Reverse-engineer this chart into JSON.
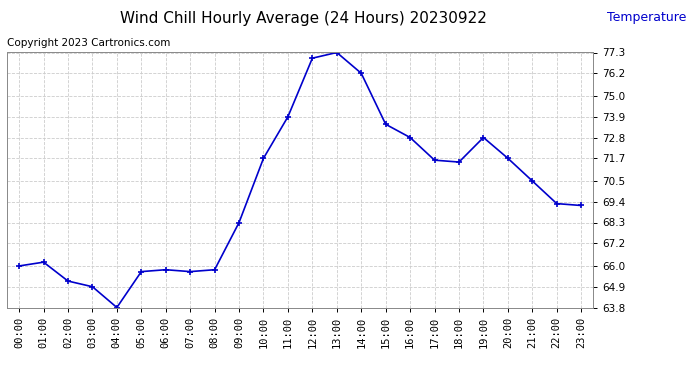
{
  "title": "Wind Chill Hourly Average (24 Hours) 20230922",
  "ylabel": "Temperature (°F)",
  "copyright": "Copyright 2023 Cartronics.com",
  "hours": [
    "00:00",
    "01:00",
    "02:00",
    "03:00",
    "04:00",
    "05:00",
    "06:00",
    "07:00",
    "08:00",
    "09:00",
    "10:00",
    "11:00",
    "12:00",
    "13:00",
    "14:00",
    "15:00",
    "16:00",
    "17:00",
    "18:00",
    "19:00",
    "20:00",
    "21:00",
    "22:00",
    "23:00"
  ],
  "values": [
    66.0,
    66.2,
    65.2,
    64.9,
    63.8,
    65.7,
    65.8,
    65.7,
    65.8,
    68.3,
    71.7,
    73.9,
    77.0,
    77.3,
    76.2,
    73.5,
    72.8,
    71.6,
    71.5,
    72.8,
    71.7,
    70.5,
    69.3,
    69.2
  ],
  "line_color": "#0000cc",
  "marker": "+",
  "ylim_min": 63.8,
  "ylim_max": 77.3,
  "yticks": [
    63.8,
    64.9,
    66.0,
    67.2,
    68.3,
    69.4,
    70.5,
    71.7,
    72.8,
    73.9,
    75.0,
    76.2,
    77.3
  ],
  "bg_color": "#ffffff",
  "grid_color": "#cccccc",
  "title_fontsize": 11,
  "ylabel_color": "#0000cc",
  "ylabel_fontsize": 9,
  "copyright_color": "#000000",
  "copyright_fontsize": 7.5,
  "tick_fontsize": 7.5
}
